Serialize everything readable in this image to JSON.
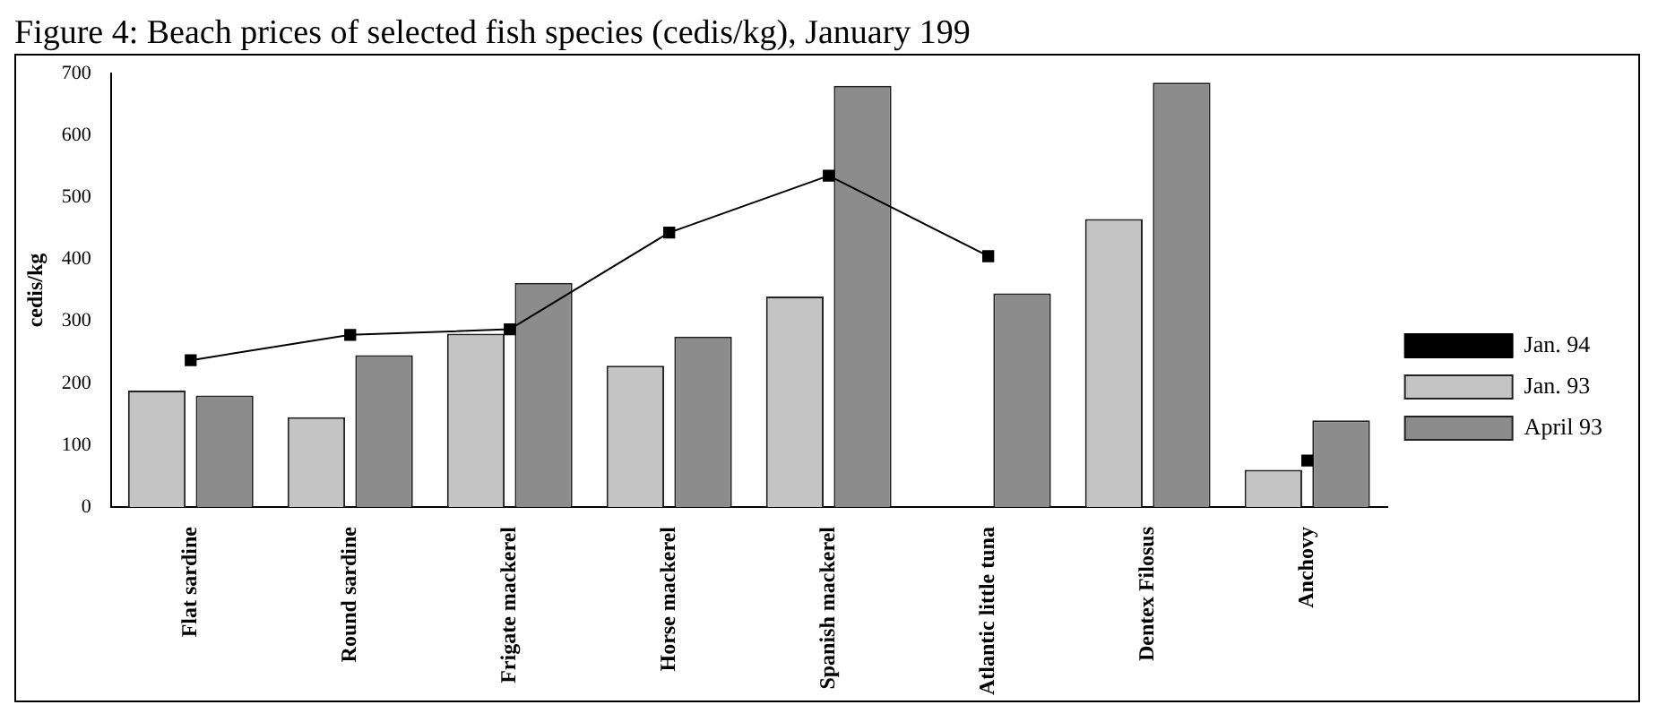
{
  "chart_data": {
    "type": "bar",
    "title": "Figure 4: Beach prices of selected fish species (cedis/kg), January 199",
    "ylabel": "cedis/kg",
    "categories": [
      "Flat sardine",
      "Round sardine",
      "Frigate mackerel",
      "Horse mackerel",
      "Spanish mackerel",
      "Atlantic little tuna",
      "Dentex Filosus",
      "Anchovy"
    ],
    "series": [
      {
        "name": "Jan. 93",
        "color": "#c4c4c4",
        "values": [
          188,
          145,
          280,
          228,
          340,
          null,
          465,
          60
        ]
      },
      {
        "name": "April 93",
        "color": "#8c8c8c",
        "values": [
          180,
          245,
          362,
          275,
          680,
          345,
          685,
          140
        ]
      },
      {
        "name": "Jan. 94",
        "type": "line",
        "color": "#000000",
        "marker": "square",
        "line_style": "solid",
        "values": [
          237,
          278,
          287,
          443,
          535,
          405,
          null,
          75
        ]
      }
    ],
    "ylim": [
      0,
      700
    ],
    "yticks": [
      0,
      100,
      200,
      300,
      400,
      500,
      600,
      700
    ],
    "grid": false,
    "legend": "right"
  }
}
